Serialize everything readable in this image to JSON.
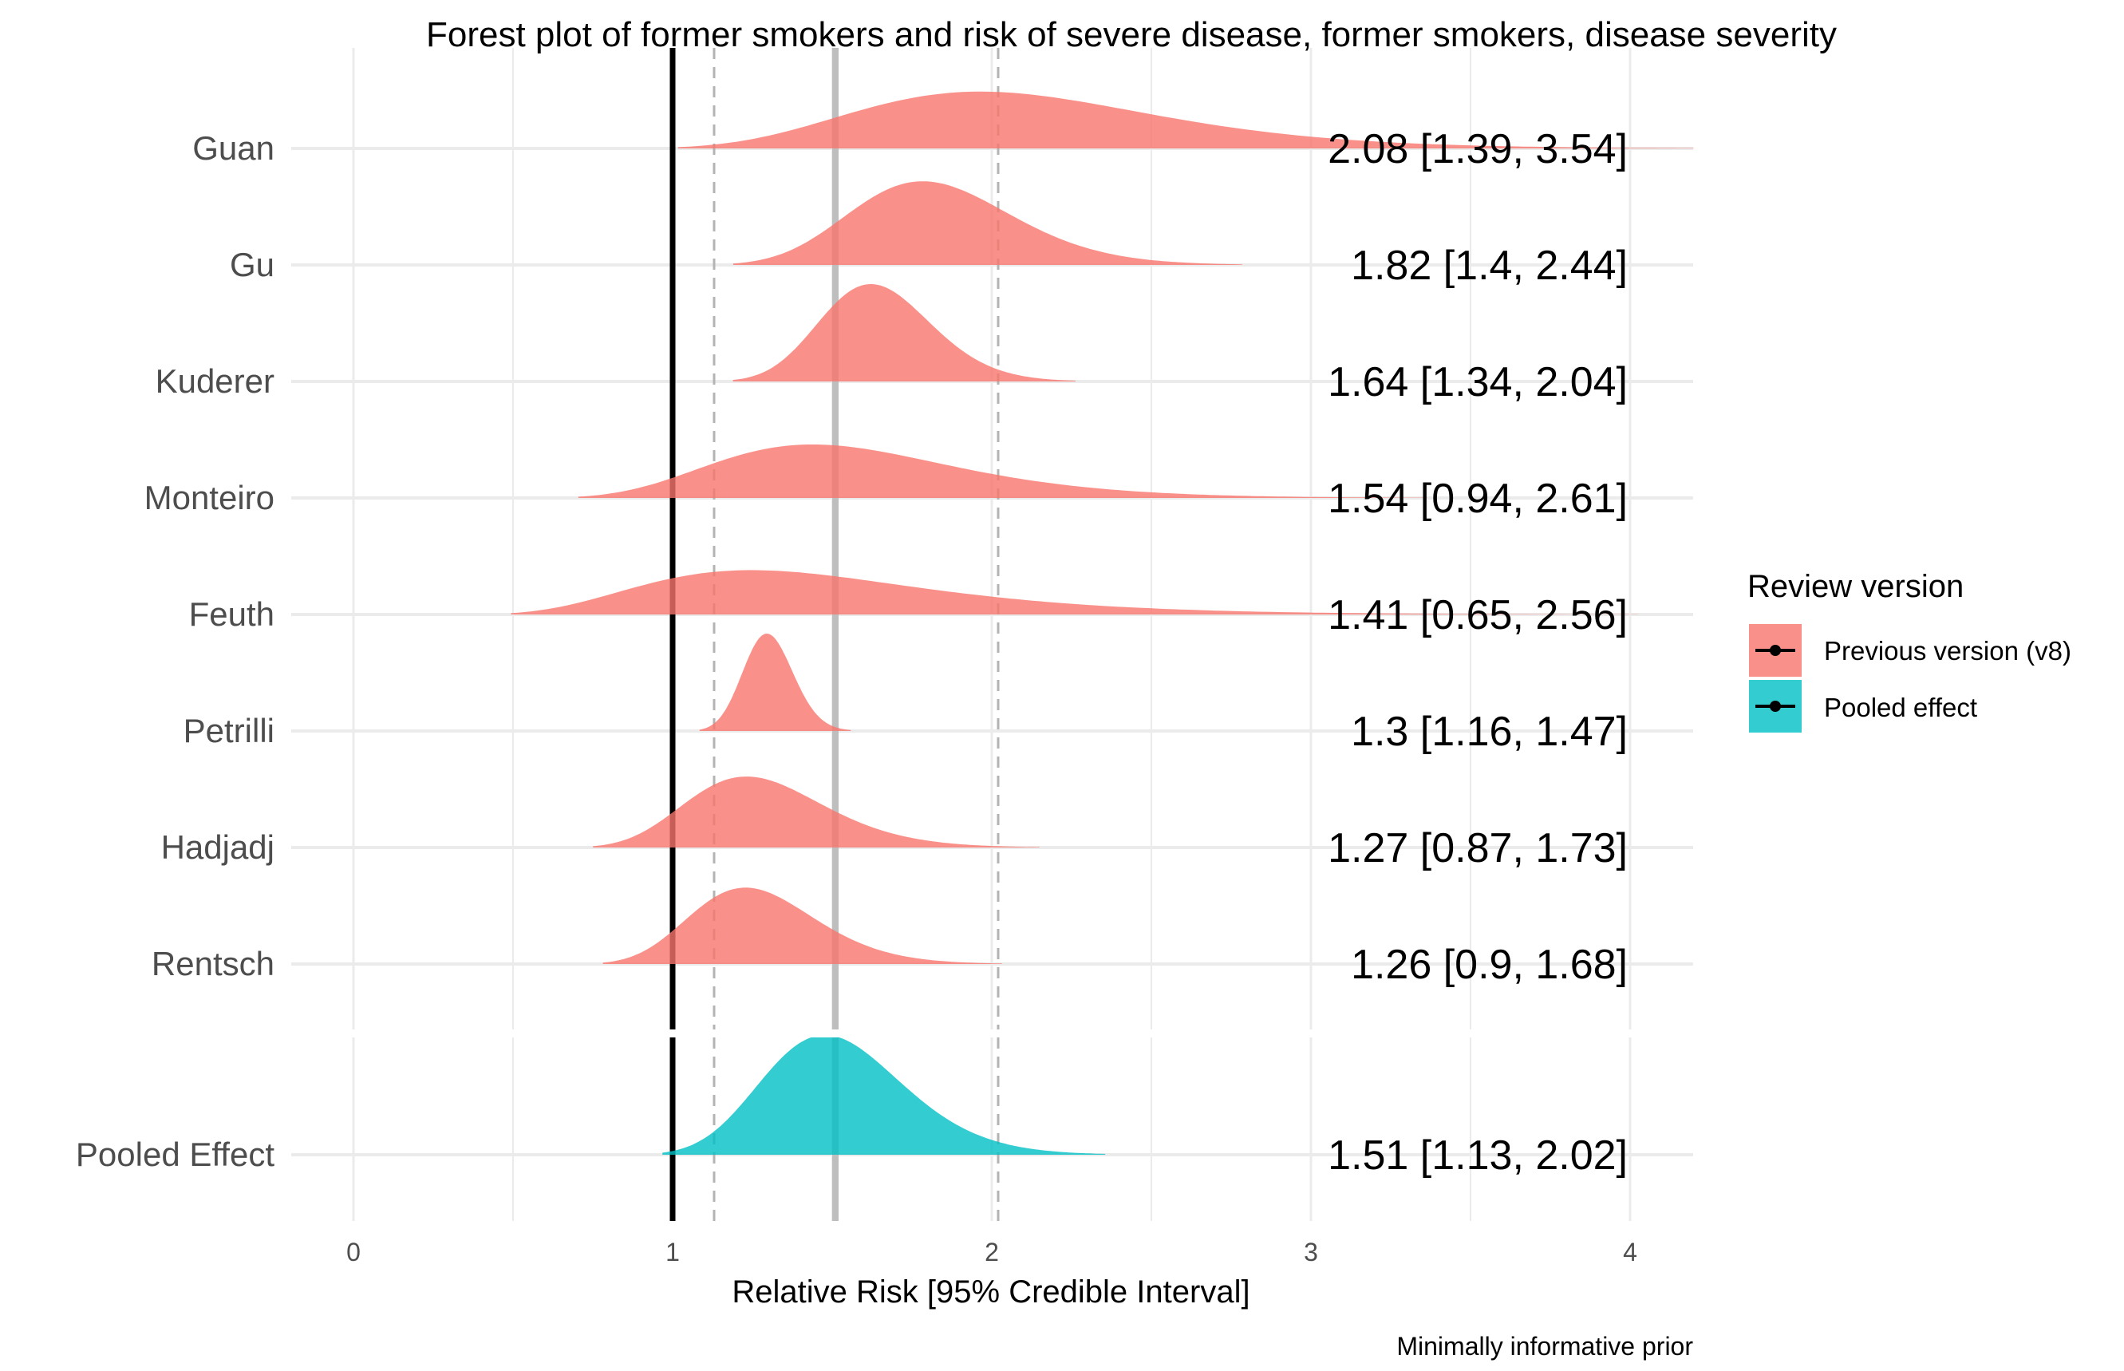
{
  "chart_data": {
    "type": "forest-density",
    "title": "Forest plot of former smokers and risk of severe disease, former smokers, disease severity",
    "xlabel": "Relative Risk [95% Credible Interval]",
    "caption": "Minimally informative prior",
    "xlim": [
      0,
      4
    ],
    "x_ticks": [
      0,
      1,
      2,
      3,
      4
    ],
    "grid": true,
    "null_line": 1,
    "pooled_mean_line": 1.51,
    "pooled_ci_lines": [
      1.13,
      2.02
    ],
    "legend": {
      "title": "Review version",
      "position": "right",
      "entries": [
        {
          "label": "Previous version (v8)",
          "color": "#F8766D"
        },
        {
          "label": "Pooled effect",
          "color": "#00BFC4"
        }
      ]
    },
    "studies": [
      {
        "name": "Guan",
        "mean": 2.08,
        "lower": 1.39,
        "upper": 3.54,
        "label": "2.08 [1.39, 3.54]",
        "group": "Previous version (v8)"
      },
      {
        "name": "Gu",
        "mean": 1.82,
        "lower": 1.4,
        "upper": 2.44,
        "label": "1.82 [1.4, 2.44]",
        "group": "Previous version (v8)"
      },
      {
        "name": "Kuderer",
        "mean": 1.64,
        "lower": 1.34,
        "upper": 2.04,
        "label": "1.64 [1.34, 2.04]",
        "group": "Previous version (v8)"
      },
      {
        "name": "Monteiro",
        "mean": 1.54,
        "lower": 0.94,
        "upper": 2.61,
        "label": "1.54 [0.94, 2.61]",
        "group": "Previous version (v8)"
      },
      {
        "name": "Feuth",
        "mean": 1.41,
        "lower": 0.65,
        "upper": 2.56,
        "label": "1.41 [0.65, 2.56]",
        "group": "Previous version (v8)"
      },
      {
        "name": "Petrilli",
        "mean": 1.3,
        "lower": 1.16,
        "upper": 1.47,
        "label": "1.3 [1.16, 1.47]",
        "group": "Previous version (v8)"
      },
      {
        "name": "Hadjadj",
        "mean": 1.27,
        "lower": 0.87,
        "upper": 1.73,
        "label": "1.27 [0.87, 1.73]",
        "group": "Previous version (v8)"
      },
      {
        "name": "Rentsch",
        "mean": 1.26,
        "lower": 0.9,
        "upper": 1.68,
        "label": "1.26 [0.9, 1.68]",
        "group": "Previous version (v8)"
      }
    ],
    "pooled": {
      "name": "Pooled Effect",
      "mean": 1.51,
      "lower": 1.13,
      "upper": 2.02,
      "label": "1.51 [1.13, 2.02]",
      "group": "Pooled effect"
    }
  }
}
